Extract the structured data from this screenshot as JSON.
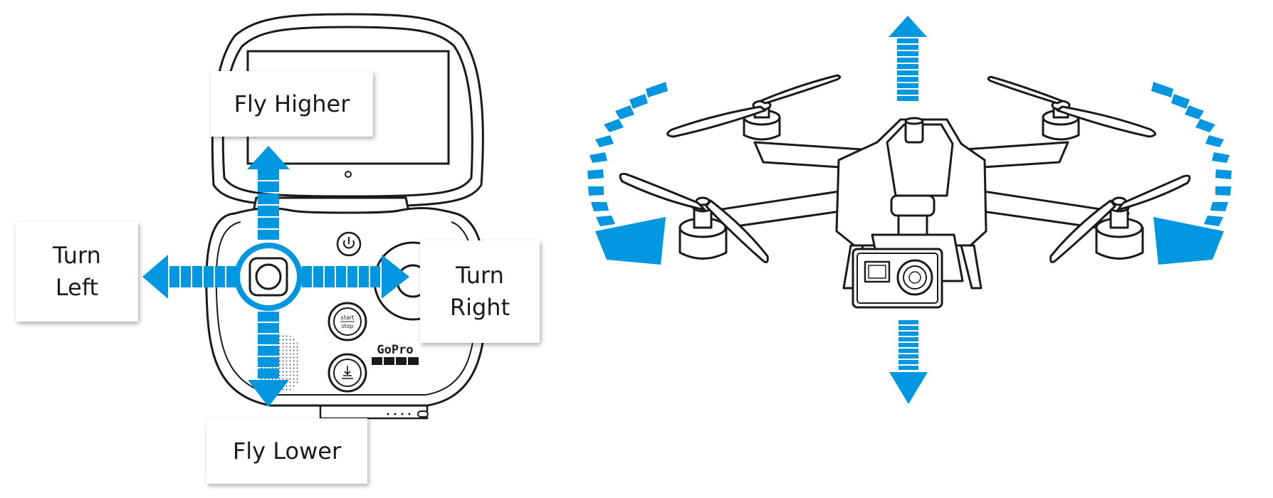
{
  "labels": {
    "fly_higher": "Fly Higher",
    "fly_lower": "Fly Lower",
    "turn_left": "Turn\nLeft",
    "turn_right": "Turn\nRight"
  },
  "controller": {
    "logo_text": "GoPro",
    "button_start": "start",
    "button_stop": "stop"
  },
  "icons": [
    "power-icon",
    "land-icon",
    "speaker-grille"
  ],
  "colors": {
    "accent": "#0096e0",
    "line": "#1a1a1a",
    "background": "#ffffff"
  }
}
